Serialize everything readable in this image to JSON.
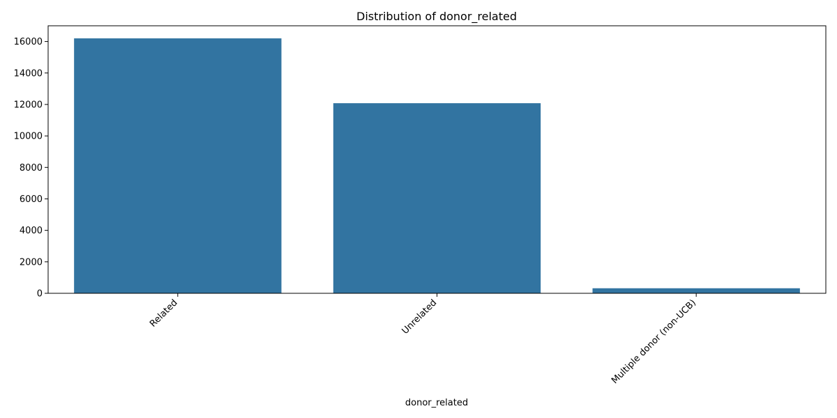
{
  "chart_data": {
    "type": "bar",
    "title": "Distribution of donor_related",
    "xlabel": "donor_related",
    "ylabel": "",
    "categories": [
      "Related",
      "Unrelated",
      "Multiple donor (non-UCB)"
    ],
    "values": [
      16200,
      12080,
      320
    ],
    "ylim": [
      0,
      17000
    ],
    "yticks": [
      0,
      2000,
      4000,
      6000,
      8000,
      10000,
      12000,
      14000,
      16000
    ],
    "bar_color": "#3274a1",
    "grid": false,
    "legend": "none"
  }
}
